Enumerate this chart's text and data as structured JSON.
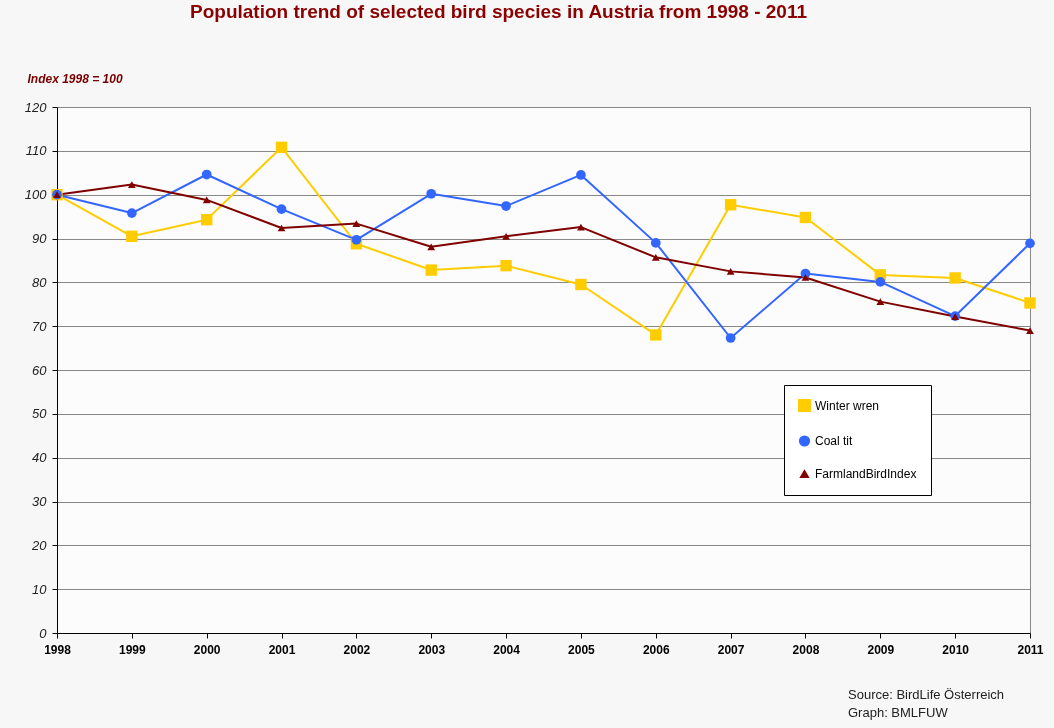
{
  "chart_data": {
    "type": "line",
    "title": "Population trend of selected bird species in Austria from 1998 - 2011",
    "ylabel": "Index 1998 = 100",
    "categories": [
      "1998",
      "1999",
      "2000",
      "2001",
      "2002",
      "2003",
      "2004",
      "2005",
      "2006",
      "2007",
      "2008",
      "2009",
      "2010",
      "2011"
    ],
    "series": [
      {
        "name": "Winter wren",
        "color": "#ffcc00",
        "marker": "square",
        "values": [
          100,
          90.5,
          94.3,
          110.8,
          88.8,
          82.8,
          83.8,
          79.5,
          68,
          97.7,
          94.8,
          81.7,
          81,
          75.3
        ]
      },
      {
        "name": "Coal tit",
        "color": "#3366ff",
        "marker": "circle",
        "values": [
          100,
          95.8,
          104.6,
          96.7,
          89.7,
          100.2,
          97.4,
          104.5,
          89,
          67.3,
          82,
          80.1,
          72.3,
          88.9
        ]
      },
      {
        "name": "FarmlandBirdIndex",
        "color": "#800000",
        "marker": "triangle",
        "values": [
          100,
          102.3,
          98.8,
          92.4,
          93.4,
          88.1,
          90.5,
          92.6,
          85.7,
          82.5,
          81.1,
          75.6,
          72.2,
          69
        ]
      }
    ],
    "ylim": [
      0,
      120
    ],
    "yticks": [
      0,
      10,
      20,
      30,
      40,
      50,
      60,
      70,
      80,
      90,
      100,
      110,
      120
    ],
    "grid": "y",
    "legend": "right",
    "annotations": [
      "Source: BirdLife Österreich",
      "Graph: BMLFUW"
    ]
  }
}
